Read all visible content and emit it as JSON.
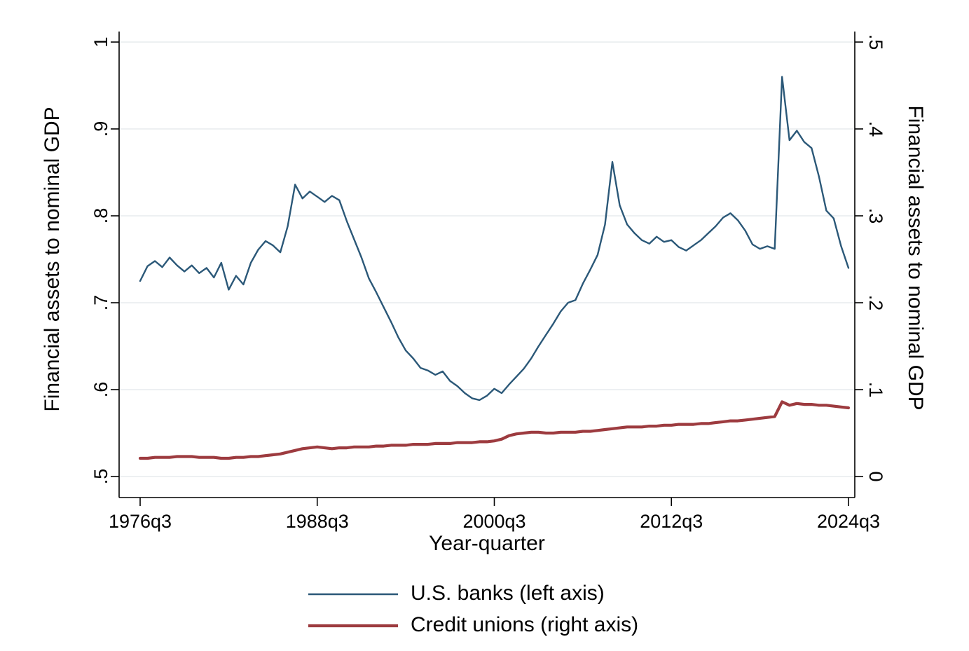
{
  "style": {
    "background": "#ffffff",
    "grid_color": "#e7ecee",
    "axis_color": "#000000"
  },
  "chart_data": {
    "type": "line",
    "title": "",
    "grid": true,
    "legend_position": "bottom",
    "x_axis": {
      "label": "Year-quarter",
      "tick_values": [
        1976.5,
        1988.5,
        2000.5,
        2012.5,
        2024.5
      ],
      "tick_labels": [
        "1976q3",
        "1988q3",
        "2000q3",
        "2012q3",
        "2024q3"
      ],
      "range": [
        1975.0,
        2025.0
      ]
    },
    "left_axis": {
      "label": "Financial assets to nominal GDP",
      "tick_values": [
        0.5,
        0.6,
        0.7,
        0.8,
        0.9,
        1.0
      ],
      "tick_labels": [
        ".5",
        ".6",
        ".7",
        ".8",
        ".9",
        "1"
      ],
      "range": [
        0.5,
        1.0
      ]
    },
    "right_axis": {
      "label": "Financial assets to nominal GDP",
      "tick_values": [
        0,
        0.1,
        0.2,
        0.3,
        0.4,
        0.5
      ],
      "tick_labels": [
        "0",
        ".1",
        ".2",
        ".3",
        ".4",
        ".5"
      ],
      "range": [
        0,
        0.5
      ]
    },
    "series": [
      {
        "name": "U.S. banks (left axis)",
        "axis": "left",
        "color": "#2b5878",
        "x_start": 1976.5,
        "x_step": 0.5,
        "values": [
          0.725,
          0.742,
          0.748,
          0.741,
          0.752,
          0.743,
          0.736,
          0.743,
          0.734,
          0.74,
          0.729,
          0.746,
          0.715,
          0.731,
          0.721,
          0.746,
          0.761,
          0.771,
          0.766,
          0.758,
          0.788,
          0.836,
          0.82,
          0.828,
          0.822,
          0.816,
          0.823,
          0.818,
          0.794,
          0.773,
          0.752,
          0.728,
          0.712,
          0.695,
          0.678,
          0.66,
          0.645,
          0.636,
          0.625,
          0.622,
          0.617,
          0.621,
          0.61,
          0.604,
          0.596,
          0.59,
          0.588,
          0.593,
          0.601,
          0.596,
          0.606,
          0.615,
          0.624,
          0.636,
          0.65,
          0.663,
          0.676,
          0.69,
          0.7,
          0.703,
          0.722,
          0.738,
          0.755,
          0.79,
          0.862,
          0.812,
          0.79,
          0.78,
          0.772,
          0.768,
          0.776,
          0.77,
          0.772,
          0.764,
          0.76,
          0.766,
          0.772,
          0.78,
          0.788,
          0.798,
          0.803,
          0.795,
          0.783,
          0.767,
          0.762,
          0.765,
          0.762,
          0.96,
          0.887,
          0.898,
          0.885,
          0.878,
          0.845,
          0.806,
          0.797,
          0.765,
          0.74
        ]
      },
      {
        "name": "Credit unions (right axis)",
        "axis": "right",
        "color": "#9d3b3f",
        "x_start": 1976.5,
        "x_step": 0.5,
        "values": [
          0.021,
          0.021,
          0.022,
          0.022,
          0.022,
          0.023,
          0.023,
          0.023,
          0.022,
          0.022,
          0.022,
          0.021,
          0.021,
          0.022,
          0.022,
          0.023,
          0.023,
          0.024,
          0.025,
          0.026,
          0.028,
          0.03,
          0.032,
          0.033,
          0.034,
          0.033,
          0.032,
          0.033,
          0.033,
          0.034,
          0.034,
          0.034,
          0.035,
          0.035,
          0.036,
          0.036,
          0.036,
          0.037,
          0.037,
          0.037,
          0.038,
          0.038,
          0.038,
          0.039,
          0.039,
          0.039,
          0.04,
          0.04,
          0.041,
          0.043,
          0.047,
          0.049,
          0.05,
          0.051,
          0.051,
          0.05,
          0.05,
          0.051,
          0.051,
          0.051,
          0.052,
          0.052,
          0.053,
          0.054,
          0.055,
          0.056,
          0.057,
          0.057,
          0.057,
          0.058,
          0.058,
          0.059,
          0.059,
          0.06,
          0.06,
          0.06,
          0.061,
          0.061,
          0.062,
          0.063,
          0.064,
          0.064,
          0.065,
          0.066,
          0.067,
          0.068,
          0.069,
          0.086,
          0.082,
          0.084,
          0.083,
          0.083,
          0.082,
          0.082,
          0.081,
          0.08,
          0.079
        ]
      }
    ]
  }
}
